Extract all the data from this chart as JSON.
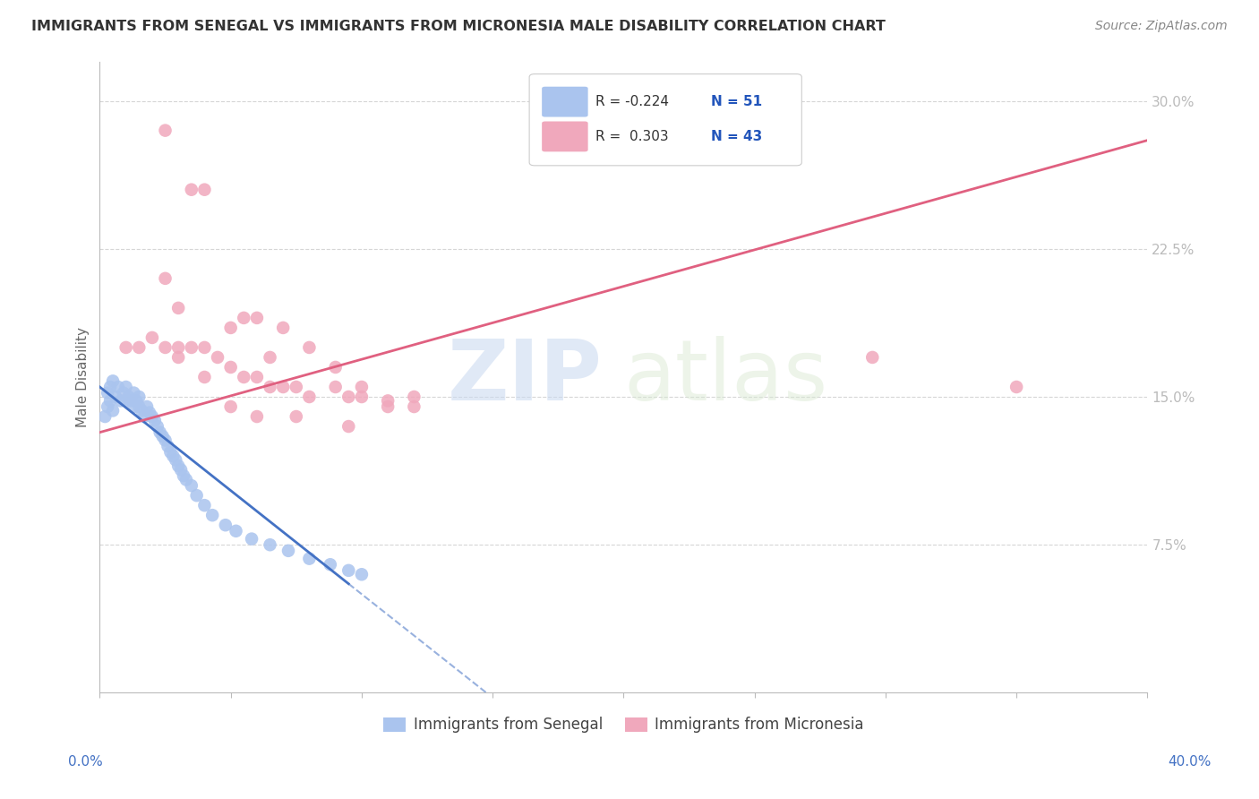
{
  "title": "IMMIGRANTS FROM SENEGAL VS IMMIGRANTS FROM MICRONESIA MALE DISABILITY CORRELATION CHART",
  "source": "Source: ZipAtlas.com",
  "ylabel": "Male Disability",
  "ytick_labels": [
    "7.5%",
    "15.0%",
    "22.5%",
    "30.0%"
  ],
  "legend_blue_r": "-0.224",
  "legend_blue_n": "51",
  "legend_pink_r": "0.303",
  "legend_pink_n": "43",
  "legend_blue_label": "Immigrants from Senegal",
  "legend_pink_label": "Immigrants from Micronesia",
  "xlim": [
    0.0,
    0.4
  ],
  "ylim": [
    0.0,
    0.32
  ],
  "yticks": [
    0.075,
    0.15,
    0.225,
    0.3
  ],
  "blue_color": "#aac4ee",
  "pink_color": "#f0a8bc",
  "blue_line_color": "#4472c4",
  "pink_line_color": "#e06080",
  "watermark_zip": "ZIP",
  "watermark_atlas": "atlas",
  "senegal_x": [
    0.002,
    0.003,
    0.003,
    0.004,
    0.004,
    0.005,
    0.005,
    0.006,
    0.007,
    0.008,
    0.009,
    0.01,
    0.01,
    0.011,
    0.012,
    0.013,
    0.013,
    0.014,
    0.015,
    0.015,
    0.016,
    0.017,
    0.018,
    0.019,
    0.02,
    0.021,
    0.022,
    0.023,
    0.024,
    0.025,
    0.026,
    0.027,
    0.028,
    0.029,
    0.03,
    0.031,
    0.032,
    0.033,
    0.035,
    0.037,
    0.04,
    0.043,
    0.048,
    0.052,
    0.058,
    0.065,
    0.072,
    0.08,
    0.088,
    0.095,
    0.1
  ],
  "senegal_y": [
    0.14,
    0.145,
    0.152,
    0.148,
    0.155,
    0.143,
    0.158,
    0.15,
    0.155,
    0.148,
    0.152,
    0.148,
    0.155,
    0.15,
    0.148,
    0.145,
    0.152,
    0.148,
    0.145,
    0.15,
    0.143,
    0.14,
    0.145,
    0.142,
    0.14,
    0.138,
    0.135,
    0.132,
    0.13,
    0.128,
    0.125,
    0.122,
    0.12,
    0.118,
    0.115,
    0.113,
    0.11,
    0.108,
    0.105,
    0.1,
    0.095,
    0.09,
    0.085,
    0.082,
    0.078,
    0.075,
    0.072,
    0.068,
    0.065,
    0.062,
    0.06
  ],
  "micronesia_x": [
    0.01,
    0.015,
    0.02,
    0.025,
    0.03,
    0.035,
    0.04,
    0.045,
    0.05,
    0.055,
    0.06,
    0.065,
    0.07,
    0.075,
    0.08,
    0.09,
    0.095,
    0.1,
    0.11,
    0.12,
    0.025,
    0.03,
    0.035,
    0.04,
    0.05,
    0.055,
    0.06,
    0.065,
    0.07,
    0.08,
    0.09,
    0.1,
    0.11,
    0.12,
    0.025,
    0.03,
    0.04,
    0.05,
    0.06,
    0.075,
    0.095,
    0.295,
    0.35
  ],
  "micronesia_y": [
    0.175,
    0.175,
    0.18,
    0.175,
    0.175,
    0.175,
    0.175,
    0.17,
    0.165,
    0.16,
    0.16,
    0.155,
    0.155,
    0.155,
    0.15,
    0.155,
    0.15,
    0.15,
    0.148,
    0.145,
    0.285,
    0.195,
    0.255,
    0.255,
    0.185,
    0.19,
    0.19,
    0.17,
    0.185,
    0.175,
    0.165,
    0.155,
    0.145,
    0.15,
    0.21,
    0.17,
    0.16,
    0.145,
    0.14,
    0.14,
    0.135,
    0.17,
    0.155
  ],
  "blue_line_x0": 0.0,
  "blue_line_x_solid_end": 0.095,
  "blue_line_x_dash_end": 0.4,
  "blue_intercept": 0.155,
  "blue_slope": -1.05,
  "pink_intercept": 0.132,
  "pink_slope": 0.37
}
